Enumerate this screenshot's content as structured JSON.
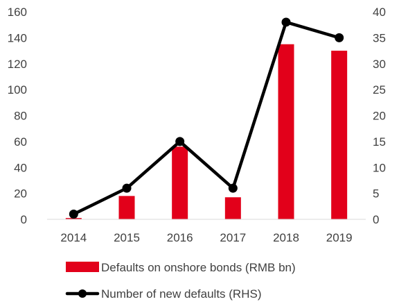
{
  "chart_data": {
    "type": "bar",
    "categories": [
      "2014",
      "2015",
      "2016",
      "2017",
      "2018",
      "2019"
    ],
    "series": [
      {
        "name": "Defaults on onshore bonds (RMB bn)",
        "type": "bar",
        "axis": "left",
        "color": "#e2001a",
        "values": [
          1,
          18,
          56,
          17,
          135,
          130
        ]
      },
      {
        "name": "Number of new defaults (RHS)",
        "type": "line",
        "axis": "right",
        "color": "#000000",
        "values": [
          1,
          6,
          15,
          6,
          38,
          35
        ]
      }
    ],
    "left_axis": {
      "ylim": [
        0,
        160
      ],
      "ticks": [
        "0",
        "20",
        "40",
        "60",
        "80",
        "100",
        "120",
        "140",
        "160"
      ]
    },
    "right_axis": {
      "ylim": [
        0,
        40
      ],
      "ticks": [
        "0",
        "5",
        "10",
        "15",
        "20",
        "25",
        "30",
        "35",
        "40"
      ]
    },
    "grid": false,
    "legend_position": "bottom"
  }
}
